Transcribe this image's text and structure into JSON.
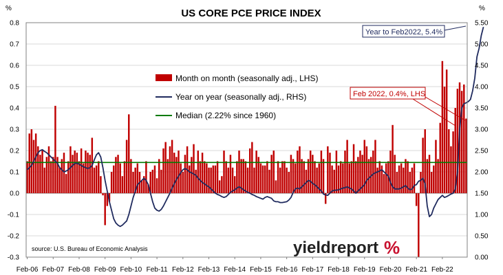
{
  "chart_data": {
    "type": "bar+line",
    "title": "US CORE PCE PRICE INDEX",
    "left_unit": "%",
    "right_unit": "%",
    "left_axis": {
      "min": -0.3,
      "max": 0.8,
      "step": 0.1,
      "ticks": [
        "-0.3",
        "-0.2",
        "-0.1",
        "0.0",
        "0.1",
        "0.2",
        "0.3",
        "0.4",
        "0.5",
        "0.6",
        "0.7",
        "0.8"
      ]
    },
    "right_axis": {
      "min": 0.0,
      "max": 5.5,
      "step": 0.5,
      "ticks": [
        "0.00",
        "0.50",
        "1.00",
        "1.50",
        "2.00",
        "2.50",
        "3.00",
        "3.50",
        "4.00",
        "4.50",
        "5.00",
        "5.50"
      ]
    },
    "x_ticks": [
      "Feb-06",
      "Feb-07",
      "Feb-08",
      "Feb-09",
      "Feb-10",
      "Feb-11",
      "Feb-12",
      "Feb-13",
      "Feb-14",
      "Feb-15",
      "Feb-16",
      "Feb-17",
      "Feb-18",
      "Feb-19",
      "Feb-20",
      "Feb-21",
      "Feb-22"
    ],
    "period": {
      "start": "2006-02",
      "end": "2022-02",
      "frequency": "monthly"
    },
    "series": [
      {
        "name": "Month on month (seasonally adj., LHS)",
        "kind": "bar",
        "axis": "left",
        "color": "#c00000",
        "values": [
          0.15,
          0.28,
          0.3,
          0.25,
          0.28,
          0.22,
          0.18,
          0.2,
          0.12,
          0.17,
          0.22,
          0.15,
          0.17,
          0.41,
          0.17,
          0.12,
          0.16,
          0.19,
          0.09,
          0.15,
          0.22,
          0.18,
          0.2,
          0.19,
          0.15,
          0.21,
          0.14,
          0.2,
          0.19,
          0.18,
          0.26,
          0.12,
          0.13,
          0.15,
          0.08,
          -0.01,
          -0.15,
          -0.06,
          -0.04,
          0.1,
          0.13,
          0.17,
          0.18,
          0.14,
          0.08,
          0.15,
          0.25,
          0.37,
          0.16,
          0.1,
          0.12,
          0.14,
          0.1,
          0.06,
          0.08,
          0.15,
          0.04,
          0.1,
          0.11,
          0.13,
          0.07,
          0.16,
          0.11,
          0.21,
          0.24,
          0.16,
          0.22,
          0.25,
          0.19,
          0.17,
          0.2,
          0.14,
          0.1,
          0.18,
          0.22,
          0.13,
          0.17,
          0.23,
          0.11,
          0.2,
          0.15,
          0.19,
          0.15,
          0.14,
          0.12,
          0.12,
          0.13,
          0.13,
          0.15,
          0.06,
          0.08,
          0.2,
          0.15,
          0.12,
          0.18,
          0.12,
          0.08,
          0.15,
          0.2,
          0.16,
          0.16,
          0.15,
          0.12,
          0.21,
          0.24,
          0.12,
          0.2,
          0.17,
          0.14,
          0.13,
          0.13,
          0.15,
          0.11,
          0.18,
          0.2,
          0.06,
          0.15,
          0.12,
          0.15,
          0.15,
          0.12,
          0.1,
          0.18,
          0.16,
          0.14,
          0.2,
          0.22,
          0.16,
          0.15,
          0.11,
          0.16,
          0.2,
          0.18,
          0.15,
          0.12,
          0.14,
          0.2,
          0.16,
          -0.05,
          0.22,
          0.19,
          0.13,
          0.11,
          0.2,
          0.13,
          0.15,
          0.14,
          0.2,
          0.25,
          0.14,
          0.15,
          0.23,
          0.15,
          0.17,
          0.2,
          0.18,
          0.25,
          0.22,
          0.16,
          0.17,
          0.2,
          0.25,
          0.12,
          0.15,
          0.13,
          0.09,
          0.14,
          0.15,
          0.2,
          0.32,
          0.18,
          0.1,
          0.13,
          0.14,
          0.12,
          0.16,
          0.15,
          0.1,
          0.12,
          0.14,
          -0.06,
          -0.3,
          0.1,
          0.26,
          0.3,
          0.16,
          0.18,
          0.1,
          0.13,
          0.25,
          0.16,
          0.33,
          0.62,
          0.5,
          0.58,
          0.3,
          0.22,
          0.29,
          0.4,
          0.49,
          0.52,
          0.48,
          0.51,
          0.35
        ]
      },
      {
        "name": "Year on year (seasonally adj., RHS)",
        "kind": "line",
        "axis": "right",
        "color": "#1f2a5e",
        "values": [
          2.05,
          2.1,
          2.15,
          2.25,
          2.35,
          2.45,
          2.5,
          2.52,
          2.48,
          2.45,
          2.4,
          2.35,
          2.3,
          2.25,
          2.2,
          2.1,
          2.05,
          2.0,
          2.02,
          2.05,
          2.1,
          2.15,
          2.2,
          2.2,
          2.18,
          2.15,
          2.12,
          2.1,
          2.08,
          2.1,
          2.15,
          2.28,
          2.4,
          2.45,
          2.35,
          2.1,
          1.8,
          1.55,
          1.3,
          1.1,
          0.9,
          0.8,
          0.75,
          0.72,
          0.75,
          0.8,
          0.85,
          1.0,
          1.2,
          1.4,
          1.55,
          1.7,
          1.75,
          1.8,
          1.85,
          1.8,
          1.7,
          1.5,
          1.3,
          1.15,
          1.1,
          1.08,
          1.12,
          1.2,
          1.3,
          1.4,
          1.5,
          1.62,
          1.72,
          1.82,
          1.9,
          1.98,
          2.05,
          2.08,
          2.05,
          2.0,
          1.98,
          1.95,
          1.92,
          1.85,
          1.8,
          1.75,
          1.72,
          1.68,
          1.65,
          1.6,
          1.55,
          1.5,
          1.47,
          1.45,
          1.42,
          1.4,
          1.42,
          1.47,
          1.52,
          1.55,
          1.58,
          1.62,
          1.65,
          1.62,
          1.58,
          1.55,
          1.52,
          1.5,
          1.47,
          1.45,
          1.42,
          1.4,
          1.38,
          1.36,
          1.4,
          1.42,
          1.4,
          1.38,
          1.32,
          1.3,
          1.3,
          1.28,
          1.28,
          1.29,
          1.3,
          1.34,
          1.4,
          1.52,
          1.6,
          1.62,
          1.6,
          1.65,
          1.7,
          1.75,
          1.8,
          1.78,
          1.73,
          1.7,
          1.65,
          1.6,
          1.55,
          1.48,
          1.46,
          1.45,
          1.5,
          1.55,
          1.57,
          1.57,
          1.58,
          1.6,
          1.62,
          1.63,
          1.65,
          1.62,
          1.6,
          1.55,
          1.5,
          1.55,
          1.6,
          1.65,
          1.7,
          1.8,
          1.85,
          1.9,
          1.95,
          1.98,
          2.0,
          2.02,
          2.05,
          2.0,
          1.95,
          1.9,
          1.75,
          1.65,
          1.6,
          1.6,
          1.6,
          1.62,
          1.65,
          1.68,
          1.62,
          1.58,
          1.6,
          1.68,
          1.7,
          1.78,
          1.8,
          1.85,
          1.72,
          1.2,
          0.95,
          1.0,
          1.15,
          1.25,
          1.35,
          1.4,
          1.45,
          1.4,
          1.42,
          1.45,
          1.48,
          1.5,
          1.6,
          2.0,
          3.0,
          3.5,
          3.6,
          3.62,
          3.65,
          3.7,
          3.9,
          4.2,
          4.7,
          4.9,
          5.2,
          5.4
        ]
      },
      {
        "name": "Median (2.22% since 1960)",
        "kind": "hline",
        "axis": "right",
        "color": "#007a00",
        "value": 2.22
      }
    ],
    "annotations": [
      {
        "text": "Year to Feb2022, 5.4%",
        "color": "#1f2a5e"
      },
      {
        "text": "Feb 2022, 0.4%, LHS",
        "color": "#c00000"
      }
    ],
    "source": "source: U.S. Bureau of Economic Analysis",
    "brand": {
      "name": "yieldreport",
      "pct": "%"
    }
  }
}
